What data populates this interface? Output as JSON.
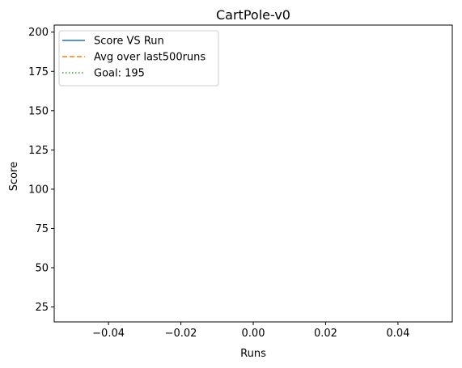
{
  "chart_data": {
    "type": "line",
    "title": "CartPole-v0",
    "xlabel": "Runs",
    "ylabel": "Score",
    "xlim": [
      -0.055,
      0.055
    ],
    "ylim": [
      15.5,
      204.5
    ],
    "x_ticks": [
      -0.04,
      -0.02,
      0.0,
      0.02,
      0.04
    ],
    "x_tick_labels": [
      "−0.04",
      "−0.02",
      "0.00",
      "0.02",
      "0.04"
    ],
    "y_ticks": [
      25,
      50,
      75,
      100,
      125,
      150,
      175,
      200
    ],
    "y_tick_labels": [
      "25",
      "50",
      "75",
      "100",
      "125",
      "150",
      "175",
      "200"
    ],
    "grid": false,
    "legend_position": "top-left",
    "series": [
      {
        "name": "Score VS Run",
        "style": "solid",
        "color": "#1f77b4",
        "x": [],
        "y": []
      },
      {
        "name": "Avg over last500runs",
        "style": "dashed",
        "color": "#ff7f0e",
        "x": [],
        "y": []
      },
      {
        "name": "Goal: 195",
        "style": "dotted",
        "color": "#2ca02c",
        "x": [],
        "y": []
      }
    ]
  }
}
